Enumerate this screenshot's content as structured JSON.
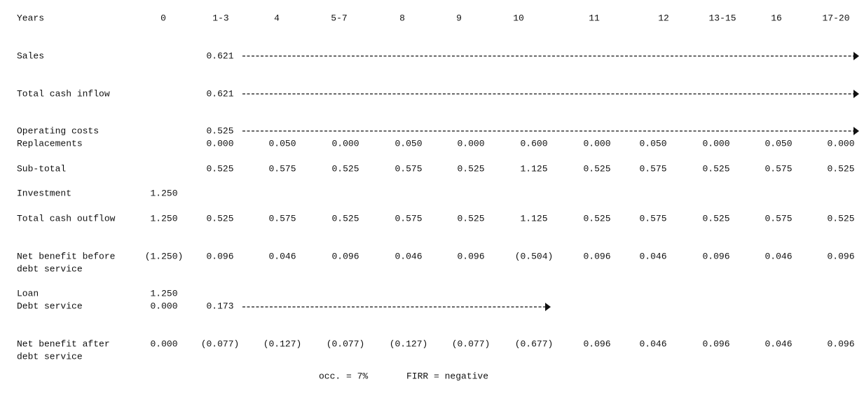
{
  "table": {
    "headers": [
      "Years",
      "0",
      "1-3",
      "4",
      "5-7",
      "8",
      "9",
      "10",
      "11",
      "12",
      "13-15",
      "16",
      "17-20"
    ],
    "rows": [
      {
        "label": [
          "Sales"
        ],
        "cells": [
          null,
          "0.621",
          null,
          null,
          null,
          null,
          null,
          null,
          null,
          null,
          null,
          null
        ]
      },
      {
        "label": [
          "Total cash inflow"
        ],
        "cells": [
          null,
          "0.621",
          null,
          null,
          null,
          null,
          null,
          null,
          null,
          null,
          null,
          null
        ]
      },
      {
        "label": [
          "Operating costs"
        ],
        "cells": [
          null,
          "0.525",
          null,
          null,
          null,
          null,
          null,
          null,
          null,
          null,
          null,
          null
        ]
      },
      {
        "label": [
          "Replacements"
        ],
        "cells": [
          null,
          "0.000",
          "0.050",
          "0.000",
          "0.050",
          "0.000",
          "0.600",
          "0.000",
          "0.050",
          "0.000",
          "0.050",
          "0.000"
        ]
      },
      {
        "label": [
          "Sub-total"
        ],
        "cells": [
          null,
          "0.525",
          "0.575",
          "0.525",
          "0.575",
          "0.525",
          "1.125",
          "0.525",
          "0.575",
          "0.525",
          "0.575",
          "0.525"
        ]
      },
      {
        "label": [
          "Investment"
        ],
        "cells": [
          "1.250",
          null,
          null,
          null,
          null,
          null,
          null,
          null,
          null,
          null,
          null,
          null
        ]
      },
      {
        "label": [
          "Total cash outflow"
        ],
        "cells": [
          "1.250",
          "0.525",
          "0.575",
          "0.525",
          "0.575",
          "0.525",
          "1.125",
          "0.525",
          "0.575",
          "0.525",
          "0.575",
          "0.525"
        ]
      },
      {
        "label": [
          "Net benefit before",
          "debt service"
        ],
        "cells": [
          "(1.250)",
          "0.096",
          "0.046",
          "0.096",
          "0.046",
          "0.096",
          "(0.504)",
          "0.096",
          "0.046",
          "0.096",
          "0.046",
          "0.096"
        ]
      },
      {
        "label": [
          "Loan"
        ],
        "cells": [
          "1.250",
          null,
          null,
          null,
          null,
          null,
          null,
          null,
          null,
          null,
          null,
          null
        ]
      },
      {
        "label": [
          "Debt service"
        ],
        "cells": [
          "0.000",
          "0.173",
          null,
          null,
          null,
          null,
          null,
          null,
          null,
          null,
          null,
          null
        ]
      },
      {
        "label": [
          "Net benefit after",
          "debt service"
        ],
        "cells": [
          "0.000",
          "(0.077)",
          "(0.127)",
          "(0.077)",
          "(0.127)",
          "(0.077)",
          "(0.677)",
          "0.096",
          "0.046",
          "0.096",
          "0.046",
          "0.096"
        ]
      }
    ]
  },
  "footer": {
    "occ": "occ. = 7%",
    "firr": "FIRR = negative"
  }
}
